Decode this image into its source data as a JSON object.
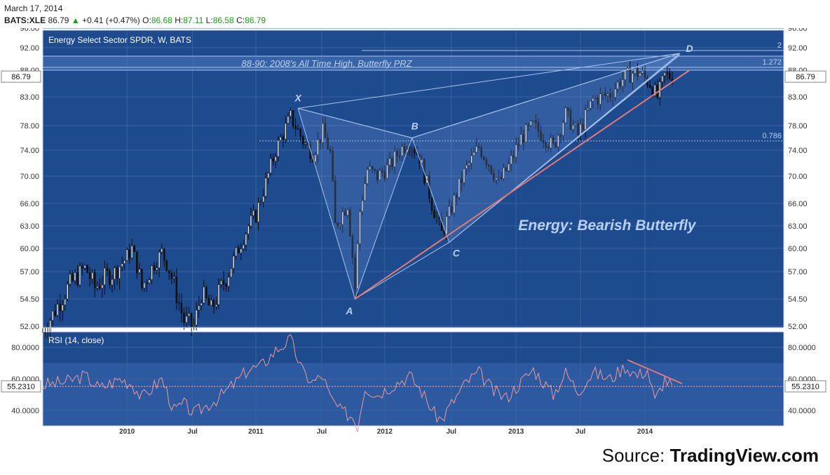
{
  "header": {
    "date": "March 17, 2014",
    "symbol": "BATS:XLE",
    "last": "86.79",
    "change_arrow": "▲",
    "change": "+0.41 (+0.47%)",
    "open_label": "O:",
    "open": "86.68",
    "high_label": "H:",
    "high": "87.11",
    "low_label": "L:",
    "low": "86.58",
    "close_label": "C:",
    "close": "86.79"
  },
  "source": {
    "label": "Source:",
    "name": "TradingView.com"
  },
  "colors": {
    "panel_bg": "#1e4a8e",
    "grid": "#3a62a0",
    "candle_up": "#ffffff",
    "candle_down": "#111111",
    "pattern_line": "#a8c4ee",
    "trendline": "#e07a7a",
    "rsi_line": "#e89a9a",
    "label_text": "#b8d0f4"
  },
  "chart_data": {
    "type": "candlestick",
    "title": "Energy Select Sector SPDR, W, BATS",
    "price_axis": {
      "ticks": [
        52,
        54.5,
        57,
        60,
        63,
        66,
        70,
        74,
        78,
        83,
        88,
        92,
        96
      ],
      "tick_labels": [
        "52.00",
        "54.50",
        "57.00",
        "60.00",
        "63.00",
        "66.00",
        "70.00",
        "74.00",
        "78.00",
        "83.00",
        "88.00",
        "92.00",
        "96.00"
      ],
      "last_value_label": "86.79",
      "last_value": 86.79
    },
    "time_axis": {
      "ticks": [
        "2009-12-28",
        "2010-07-01",
        "2010-12-27",
        "2011-07-01",
        "2011-12-26",
        "2012-07-01",
        "2012-12-31",
        "2013-07-01",
        "2013-12-30"
      ],
      "tick_labels": [
        "2010",
        "Jul",
        "2011",
        "Jul",
        "2012",
        "Jul",
        "2013",
        "Jul",
        "2014"
      ],
      "range": [
        "2009-05-04",
        "2015-01-26"
      ]
    },
    "series": [
      {
        "kind": "candles",
        "points": [
          [
            "2009-05-04",
            51.5
          ],
          [
            "2009-07-13",
            55.5
          ],
          [
            "2009-08-31",
            57.5
          ],
          [
            "2009-09-28",
            55.5
          ],
          [
            "2009-10-26",
            56.5
          ],
          [
            "2009-11-23",
            57.0
          ],
          [
            "2009-12-21",
            58.5
          ],
          [
            "2010-01-11",
            60.0
          ],
          [
            "2010-02-08",
            55.5
          ],
          [
            "2010-04-05",
            59.5
          ],
          [
            "2010-05-03",
            56.5
          ],
          [
            "2010-06-07",
            52.5
          ],
          [
            "2010-07-05",
            52.0
          ],
          [
            "2010-07-26",
            55.0
          ],
          [
            "2010-08-23",
            53.5
          ],
          [
            "2010-09-13",
            55.0
          ],
          [
            "2010-10-11",
            57.0
          ],
          [
            "2010-11-08",
            60.0
          ],
          [
            "2010-12-06",
            63.0
          ],
          [
            "2010-12-27",
            64.5
          ],
          [
            "2011-01-24",
            69.0
          ],
          [
            "2011-02-21",
            74.0
          ],
          [
            "2011-04-04",
            79.5
          ],
          [
            "2011-05-09",
            75.5
          ],
          [
            "2011-06-06",
            73.5
          ],
          [
            "2011-07-04",
            77.0
          ],
          [
            "2011-07-25",
            73.5
          ],
          [
            "2011-08-08",
            63.0
          ],
          [
            "2011-09-12",
            66.0
          ],
          [
            "2011-10-03",
            55.5
          ],
          [
            "2011-10-17",
            65.0
          ],
          [
            "2011-11-07",
            71.0
          ],
          [
            "2011-12-05",
            70.0
          ],
          [
            "2012-01-09",
            71.5
          ],
          [
            "2012-02-06",
            74.0
          ],
          [
            "2012-03-05",
            75.5
          ],
          [
            "2012-04-02",
            73.0
          ],
          [
            "2012-05-07",
            66.0
          ],
          [
            "2012-06-04",
            62.0
          ],
          [
            "2012-06-25",
            64.5
          ],
          [
            "2012-08-06",
            70.5
          ],
          [
            "2012-09-17",
            74.5
          ],
          [
            "2012-10-15",
            72.0
          ],
          [
            "2012-11-12",
            69.0
          ],
          [
            "2012-12-10",
            71.5
          ],
          [
            "2013-01-14",
            76.0
          ],
          [
            "2013-02-18",
            78.0
          ],
          [
            "2013-04-15",
            74.5
          ],
          [
            "2013-05-20",
            80.0
          ],
          [
            "2013-06-24",
            76.5
          ],
          [
            "2013-08-05",
            82.5
          ],
          [
            "2013-09-23",
            83.5
          ],
          [
            "2013-10-21",
            86.0
          ],
          [
            "2013-11-25",
            87.5
          ],
          [
            "2013-12-16",
            87.5
          ],
          [
            "2014-01-13",
            85.5
          ],
          [
            "2014-02-03",
            83.0
          ],
          [
            "2014-02-24",
            87.0
          ],
          [
            "2014-03-17",
            86.79
          ]
        ]
      }
    ],
    "pattern_points": [
      {
        "label": "X",
        "date": "2011-04-25",
        "price": 81.0
      },
      {
        "label": "A",
        "date": "2011-10-03",
        "price": 54.5
      },
      {
        "label": "B",
        "date": "2012-03-12",
        "price": 76.0
      },
      {
        "label": "C",
        "date": "2012-06-25",
        "price": 60.8
      },
      {
        "label": "D",
        "date": "2014-04-07",
        "price": 91.0
      }
    ],
    "trendline": {
      "start": [
        "2011-10-03",
        54.5
      ],
      "end": [
        "2014-05-05",
        88.0
      ]
    },
    "fib_levels": [
      {
        "label": "0.786",
        "price": 75.5
      },
      {
        "label": "1.272",
        "price": 88.5
      },
      {
        "label": "2",
        "price": 91.5
      }
    ],
    "zone": {
      "label": "88-90: 2008's All Time High, Butterfly PRZ",
      "low": 88.0,
      "high": 90.5
    },
    "annotation": "Energy: Bearish Butterfly",
    "rsi": {
      "title": "RSI (14, close)",
      "ticks": [
        40,
        60,
        80
      ],
      "tick_labels": [
        "40.0000",
        "60.0000",
        "80.0000"
      ],
      "band": [
        30,
        70
      ],
      "last_value": 55.231,
      "last_value_label": "55.2310",
      "points": [
        [
          "2009-05-04",
          56
        ],
        [
          "2009-07-06",
          58
        ],
        [
          "2009-08-31",
          62
        ],
        [
          "2009-10-12",
          54
        ],
        [
          "2009-12-07",
          60
        ],
        [
          "2010-01-11",
          57
        ],
        [
          "2010-02-08",
          48
        ],
        [
          "2010-04-05",
          60
        ],
        [
          "2010-05-10",
          40
        ],
        [
          "2010-06-07",
          44
        ],
        [
          "2010-07-05",
          38
        ],
        [
          "2010-08-02",
          42
        ],
        [
          "2010-09-13",
          48
        ],
        [
          "2010-11-01",
          58
        ],
        [
          "2010-12-06",
          66
        ],
        [
          "2011-01-10",
          68
        ],
        [
          "2011-02-21",
          78
        ],
        [
          "2011-04-04",
          85
        ],
        [
          "2011-05-09",
          64
        ],
        [
          "2011-06-06",
          58
        ],
        [
          "2011-07-04",
          62
        ],
        [
          "2011-07-25",
          48
        ],
        [
          "2011-08-22",
          40
        ],
        [
          "2011-09-26",
          36
        ],
        [
          "2011-10-10",
          30
        ],
        [
          "2011-10-31",
          55
        ],
        [
          "2011-12-05",
          50
        ],
        [
          "2012-01-16",
          56
        ],
        [
          "2012-03-05",
          62
        ],
        [
          "2012-04-09",
          52
        ],
        [
          "2012-05-14",
          38
        ],
        [
          "2012-06-04",
          34
        ],
        [
          "2012-06-25",
          42
        ],
        [
          "2012-08-13",
          58
        ],
        [
          "2012-09-17",
          64
        ],
        [
          "2012-10-29",
          52
        ],
        [
          "2012-12-03",
          48
        ],
        [
          "2013-01-14",
          58
        ],
        [
          "2013-02-18",
          66
        ],
        [
          "2013-04-15",
          50
        ],
        [
          "2013-05-20",
          64
        ],
        [
          "2013-06-24",
          52
        ],
        [
          "2013-08-05",
          64
        ],
        [
          "2013-09-23",
          60
        ],
        [
          "2013-11-04",
          68
        ],
        [
          "2013-12-09",
          62
        ],
        [
          "2014-01-06",
          66
        ],
        [
          "2014-01-27",
          46
        ],
        [
          "2014-02-24",
          60
        ],
        [
          "2014-03-17",
          55.231
        ]
      ],
      "divergence_line": {
        "start": [
          "2013-11-11",
          72
        ],
        "end": [
          "2014-04-14",
          57
        ]
      }
    }
  }
}
